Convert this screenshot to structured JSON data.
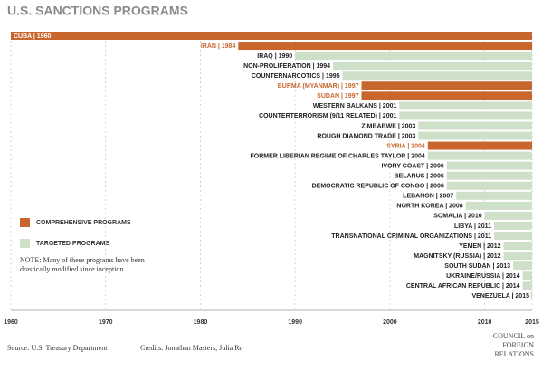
{
  "chart_data": {
    "type": "bar",
    "title": "U.S. SANCTIONS PROGRAMS",
    "categories": [
      "CUBA | 1960",
      "IRAN | 1984",
      "IRAQ | 1990",
      "NON-PROLIFERATION | 1994",
      "COUNTERNARCOTICS | 1995",
      "BURMA (MYANMAR) | 1997",
      "SUDAN | 1997",
      "WESTERN BALKANS | 2001",
      "COUNTERTERRORISM (9/11 RELATED) | 2001",
      "ZIMBABWE | 2003",
      "ROUGH DIAMOND TRADE | 2003",
      "SYRIA | 2004",
      "FORMER LIBERIAN REGIME OF CHARLES TAYLOR | 2004",
      "IVORY COAST | 2006",
      "BELARUS | 2006",
      "DEMOCRATIC REPUBLIC OF CONGO | 2006",
      "LEBANON | 2007",
      "NORTH KOREA | 2008",
      "SOMALIA | 2010",
      "LIBYA | 2011",
      "TRANSNATIONAL CRIMINAL ORGANIZATIONS | 2011",
      "YEMEN | 2012",
      "MAGNITSKY (RUSSIA) | 2012",
      "SOUTH SUDAN | 2013",
      "UKRAINE/RUSSIA | 2014",
      "CENTRAL AFRICAN REPUBLIC | 2014",
      "VENEZUELA | 2015"
    ],
    "series": [
      {
        "name": "COMPREHENSIVE PROGRAMS",
        "color": "#c8662e",
        "values": [
          1960,
          1984,
          null,
          null,
          null,
          1997,
          1997,
          null,
          null,
          null,
          null,
          2004,
          null,
          null,
          null,
          null,
          null,
          null,
          null,
          null,
          null,
          null,
          null,
          null,
          null,
          null,
          null
        ]
      },
      {
        "name": "TARGETED PROGRAMS",
        "color": "#cfe0c9",
        "values": [
          null,
          null,
          1990,
          1994,
          1995,
          null,
          null,
          2001,
          2001,
          2003,
          2003,
          null,
          2004,
          2006,
          2006,
          2006,
          2007,
          2008,
          2010,
          2011,
          2011,
          2012,
          2012,
          2013,
          2014,
          2014,
          2015
        ]
      }
    ],
    "xlim": [
      1960,
      2015
    ],
    "xticks": [
      1960,
      1970,
      1980,
      1990,
      2000,
      2010,
      2015
    ],
    "grid": true,
    "note_lines": [
      "NOTE: Many of these programs have been",
      "drastically modified since inception."
    ],
    "source": "Source: U.S. Treasury Department",
    "credits": "Credits: Jonathan Masters, Julia Ro",
    "logo_lines": [
      "COUNCIL on",
      "FOREIGN",
      "RELATIONS"
    ]
  }
}
